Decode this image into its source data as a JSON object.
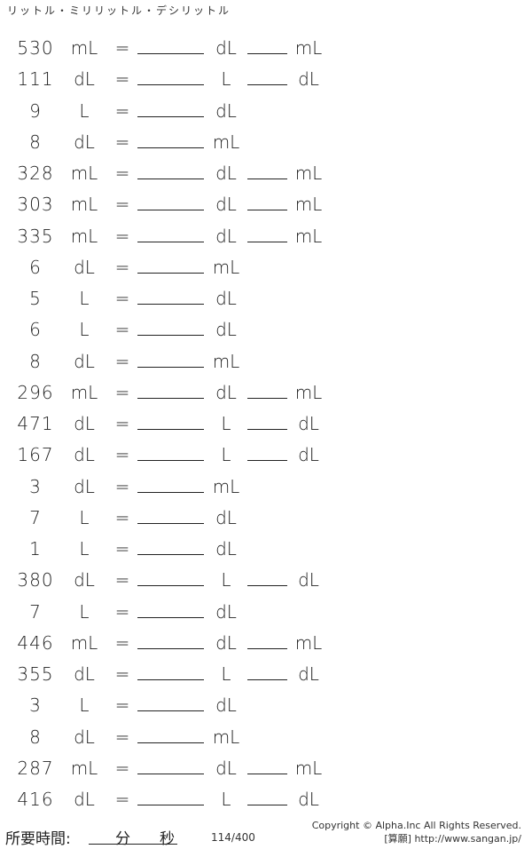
{
  "title": "リットル・ミリリットル・デシリットル",
  "equals": "=",
  "rows": [
    [
      "530",
      "mL",
      "dL",
      "mL"
    ],
    [
      "111",
      "dL",
      "L",
      "dL"
    ],
    [
      "9",
      "L",
      "dL",
      ""
    ],
    [
      "8",
      "dL",
      "mL",
      ""
    ],
    [
      "328",
      "mL",
      "dL",
      "mL"
    ],
    [
      "303",
      "mL",
      "dL",
      "mL"
    ],
    [
      "335",
      "mL",
      "dL",
      "mL"
    ],
    [
      "6",
      "dL",
      "mL",
      ""
    ],
    [
      "5",
      "L",
      "dL",
      ""
    ],
    [
      "6",
      "L",
      "dL",
      ""
    ],
    [
      "8",
      "dL",
      "mL",
      ""
    ],
    [
      "296",
      "mL",
      "dL",
      "mL"
    ],
    [
      "471",
      "dL",
      "L",
      "dL"
    ],
    [
      "167",
      "dL",
      "L",
      "dL"
    ],
    [
      "3",
      "dL",
      "mL",
      ""
    ],
    [
      "7",
      "L",
      "dL",
      ""
    ],
    [
      "1",
      "L",
      "dL",
      ""
    ],
    [
      "380",
      "dL",
      "L",
      "dL"
    ],
    [
      "7",
      "L",
      "dL",
      ""
    ],
    [
      "446",
      "mL",
      "dL",
      "mL"
    ],
    [
      "355",
      "dL",
      "L",
      "dL"
    ],
    [
      "3",
      "L",
      "dL",
      ""
    ],
    [
      "8",
      "dL",
      "mL",
      ""
    ],
    [
      "287",
      "mL",
      "dL",
      "mL"
    ],
    [
      "416",
      "dL",
      "L",
      "dL"
    ]
  ],
  "footer": {
    "time_label": "所要時間:",
    "minutes": "分",
    "seconds": "秒",
    "page": "114/400",
    "copyright": "Copyright © Alpha.Inc All Rights Reserved.",
    "site": "[算願] http://www.sangan.jp/"
  }
}
